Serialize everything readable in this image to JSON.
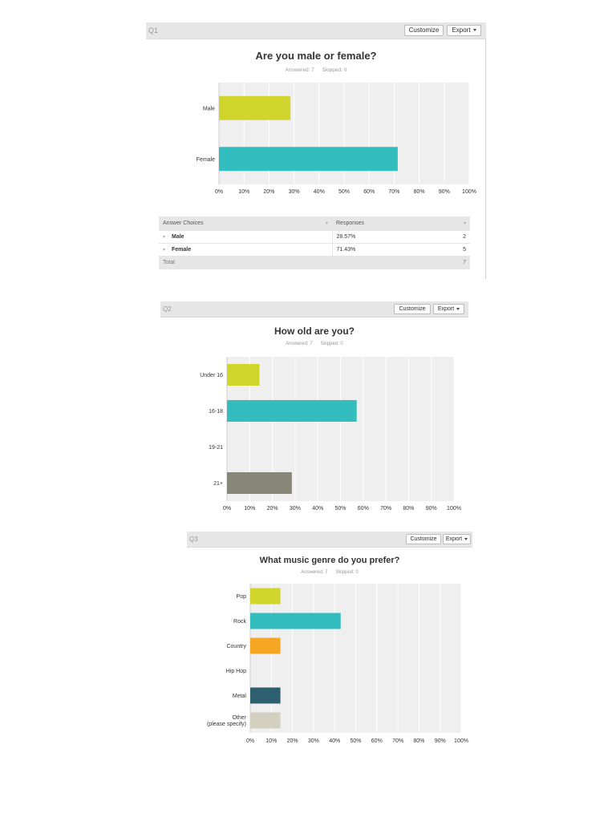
{
  "buttons": {
    "customize": "Customize",
    "export": "Export"
  },
  "questions": [
    {
      "label": "Q1",
      "title": "Are you male or female?",
      "answered": "Answered: 7",
      "skipped": "Skipped: 0",
      "table": {
        "headers": [
          "Answer Choices",
          "Responses"
        ],
        "rows": [
          {
            "choice": "Male",
            "percent": "28.57%",
            "count": "2"
          },
          {
            "choice": "Female",
            "percent": "71.43%",
            "count": "5"
          }
        ],
        "total_label": "Total",
        "total_value": "7"
      }
    },
    {
      "label": "Q2",
      "title": "How old are you?",
      "answered": "Answered: 7",
      "skipped": "Skipped: 0"
    },
    {
      "label": "Q3",
      "title": "What music genre do you prefer?",
      "answered": "Answered: 7",
      "skipped": "Skipped: 0"
    }
  ],
  "chart_data": [
    {
      "type": "bar",
      "orientation": "horizontal",
      "title": "Are you male or female?",
      "categories": [
        "Male",
        "Female"
      ],
      "values": [
        28.57,
        71.43
      ],
      "colors": [
        "#cfd52a",
        "#33bdbf"
      ],
      "xlim": [
        0,
        100
      ],
      "xticks": [
        "0%",
        "10%",
        "20%",
        "30%",
        "40%",
        "50%",
        "60%",
        "70%",
        "80%",
        "90%",
        "100%"
      ],
      "grid": true
    },
    {
      "type": "bar",
      "orientation": "horizontal",
      "title": "How old are you?",
      "categories": [
        "Under 16",
        "16-18",
        "19-21",
        "21+"
      ],
      "values": [
        14.29,
        57.14,
        0,
        28.57
      ],
      "colors": [
        "#cfd52a",
        "#33bdbf",
        "#f5a623",
        "#878878"
      ],
      "xlim": [
        0,
        100
      ],
      "xticks": [
        "0%",
        "10%",
        "20%",
        "30%",
        "40%",
        "50%",
        "60%",
        "70%",
        "80%",
        "90%",
        "100%"
      ],
      "grid": true
    },
    {
      "type": "bar",
      "orientation": "horizontal",
      "title": "What music genre do you prefer?",
      "categories": [
        "Pop",
        "Rock",
        "Country",
        "Hip Hop",
        "Metal",
        "Other (please specify)"
      ],
      "values": [
        14.29,
        42.86,
        14.29,
        0,
        14.29,
        14.29
      ],
      "colors": [
        "#cfd52a",
        "#33bdbf",
        "#f5a623",
        "#999999",
        "#2d5f6e",
        "#d3d0c0"
      ],
      "xlim": [
        0,
        100
      ],
      "xticks": [
        "0%",
        "10%",
        "20%",
        "30%",
        "40%",
        "50%",
        "60%",
        "70%",
        "80%",
        "90%",
        "100%"
      ],
      "grid": true
    }
  ]
}
